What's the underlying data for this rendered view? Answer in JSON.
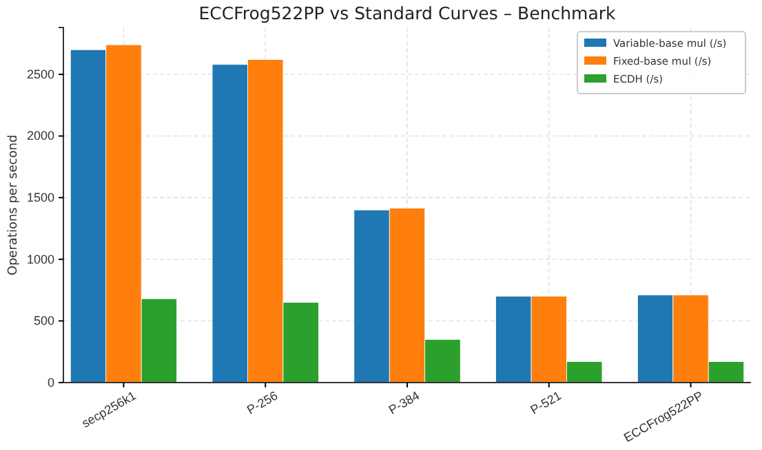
{
  "chart_data": {
    "type": "bar",
    "title": "ECCFrog522PP vs Standard Curves – Benchmark",
    "ylabel": "Operations per second",
    "categories": [
      "secp256k1",
      "P-256",
      "P-384",
      "P-521",
      "ECCFrog522PP"
    ],
    "series": [
      {
        "name": "Variable-base mul (/s)",
        "color": "#1f77b4",
        "values": [
          2700,
          2580,
          1400,
          700,
          710
        ]
      },
      {
        "name": "Fixed-base mul (/s)",
        "color": "#ff7f0e",
        "values": [
          2740,
          2620,
          1415,
          700,
          710
        ]
      },
      {
        "name": "ECDH (/s)",
        "color": "#2ca02c",
        "values": [
          680,
          650,
          350,
          170,
          170
        ]
      }
    ],
    "ylim": [
      0,
      2880
    ],
    "yticks": [
      0,
      500,
      1000,
      1500,
      2000,
      2500
    ],
    "grid": true,
    "legend": "top right"
  }
}
